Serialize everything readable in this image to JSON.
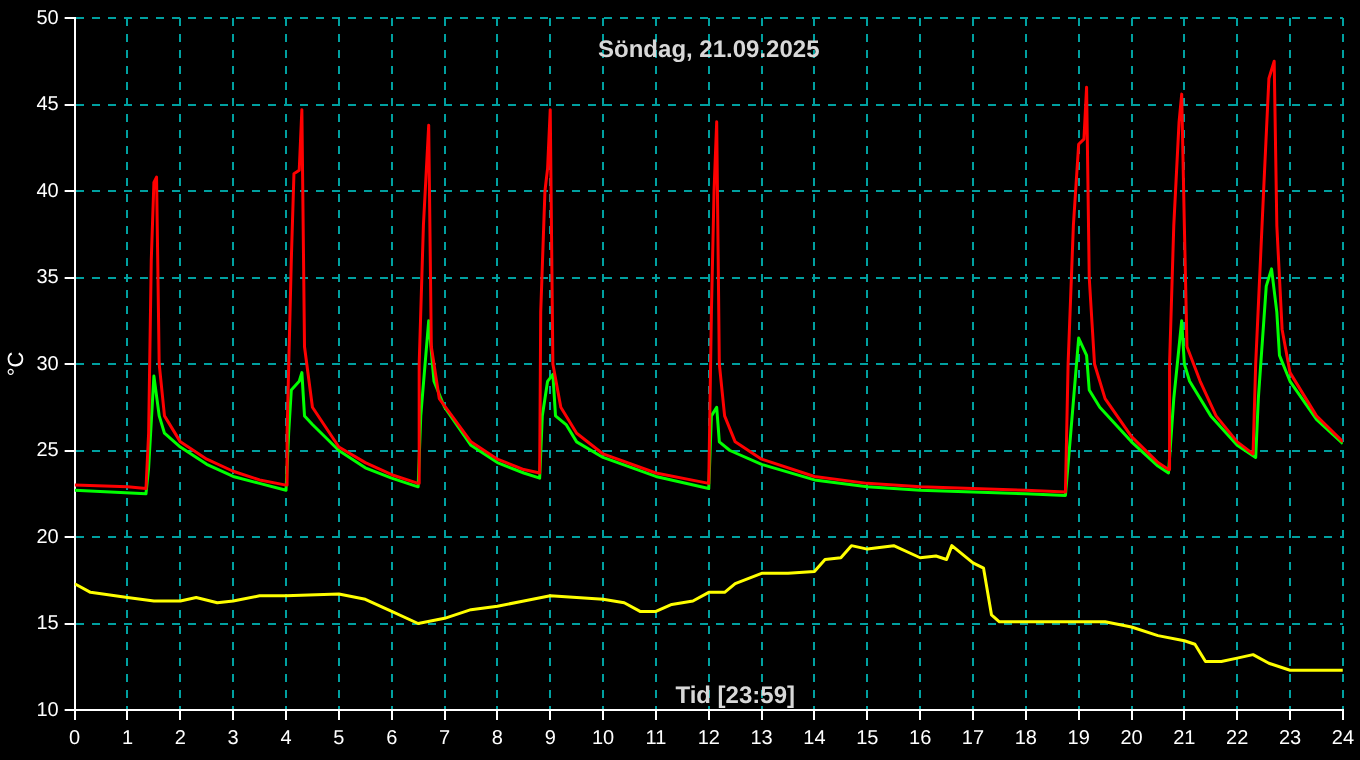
{
  "chart_data": {
    "type": "line",
    "title": "Söndag, 21.09.2025",
    "xlabel": "Tid [23:59]",
    "ylabel": "°C",
    "xlim": [
      0,
      24
    ],
    "xticks": [
      0,
      1,
      2,
      3,
      4,
      5,
      6,
      7,
      8,
      9,
      10,
      11,
      12,
      13,
      14,
      15,
      16,
      17,
      18,
      19,
      20,
      21,
      22,
      23,
      24
    ],
    "ylim": [
      10,
      50
    ],
    "yticks": [
      10,
      15,
      20,
      25,
      30,
      35,
      40,
      45,
      50
    ],
    "grid": true,
    "legend": false,
    "marker": "none",
    "line_style": "solid",
    "series": [
      {
        "color": "#ff0000",
        "x": [
          0,
          1,
          1.35,
          1.4,
          1.45,
          1.5,
          1.55,
          1.6,
          1.7,
          2,
          2.5,
          3,
          3.5,
          4,
          4.02,
          4.1,
          4.15,
          4.25,
          4.3,
          4.35,
          4.5,
          5,
          5.5,
          6,
          6.5,
          6.52,
          6.6,
          6.7,
          6.75,
          6.9,
          7.5,
          8,
          8.5,
          8.8,
          8.82,
          8.9,
          8.95,
          9,
          9.05,
          9.2,
          9.5,
          10,
          11,
          12,
          12.05,
          12.1,
          12.15,
          12.2,
          12.3,
          12.5,
          13,
          14,
          15,
          16,
          17,
          18,
          18.75,
          18.8,
          18.9,
          19,
          19.1,
          19.15,
          19.2,
          19.3,
          19.5,
          20,
          20.5,
          20.7,
          20.72,
          20.8,
          20.9,
          20.95,
          21,
          21.05,
          21.3,
          21.6,
          22,
          22.3,
          22.35,
          22.5,
          22.6,
          22.7,
          22.75,
          22.85,
          23,
          23.5,
          24
        ],
        "values": [
          23,
          22.9,
          22.8,
          26,
          36,
          40.5,
          40.8,
          30,
          27,
          25.5,
          24.5,
          23.8,
          23.3,
          23,
          26,
          36,
          41,
          41.2,
          44.7,
          31,
          27.5,
          25.2,
          24.3,
          23.6,
          23.1,
          30,
          38,
          43.8,
          31,
          28,
          25.5,
          24.5,
          23.9,
          23.7,
          33,
          40,
          41.3,
          44.7,
          30,
          27.5,
          26,
          24.8,
          23.7,
          23.1,
          33,
          40,
          44,
          30,
          27,
          25.5,
          24.5,
          23.5,
          23.1,
          22.9,
          22.8,
          22.7,
          22.6,
          30,
          38,
          42.7,
          43,
          46,
          35,
          30,
          28,
          25.8,
          24.3,
          23.9,
          30,
          38,
          44,
          45.6,
          38,
          31,
          29,
          27,
          25.5,
          24.8,
          30,
          40,
          46.5,
          47.5,
          38,
          32,
          29.5,
          27,
          25.5
        ]
      },
      {
        "color": "#00ff00",
        "x": [
          0,
          1.35,
          1.4,
          1.5,
          1.6,
          1.7,
          2,
          2.5,
          3,
          3.5,
          4,
          4.05,
          4.1,
          4.25,
          4.3,
          4.35,
          4.5,
          5,
          5.5,
          6,
          6.5,
          6.55,
          6.7,
          6.8,
          7,
          7.5,
          8,
          8.5,
          8.8,
          8.85,
          8.95,
          9.05,
          9.1,
          9.3,
          9.5,
          10,
          11,
          12,
          12.05,
          12.15,
          12.2,
          12.4,
          13,
          14,
          15,
          16,
          17,
          18,
          18.75,
          18.85,
          19,
          19.15,
          19.2,
          19.4,
          20,
          20.5,
          20.7,
          20.8,
          20.95,
          21,
          21.1,
          21.5,
          22,
          22.35,
          22.4,
          22.55,
          22.65,
          22.75,
          22.8,
          23,
          23.5,
          24
        ],
        "values": [
          22.7,
          22.5,
          24,
          29.3,
          27,
          26,
          25.2,
          24.2,
          23.5,
          23.1,
          22.7,
          26,
          28.5,
          29,
          29.5,
          27,
          26.5,
          25,
          24,
          23.4,
          22.9,
          27,
          32.5,
          29,
          27.5,
          25.3,
          24.3,
          23.7,
          23.4,
          27,
          29,
          29.4,
          27,
          26.5,
          25.5,
          24.6,
          23.5,
          22.8,
          27,
          27.5,
          25.5,
          25,
          24.2,
          23.3,
          22.9,
          22.7,
          22.6,
          22.5,
          22.4,
          26,
          31.5,
          30.5,
          28.5,
          27.5,
          25.5,
          24.1,
          23.7,
          28,
          32.5,
          30,
          29,
          27,
          25.3,
          24.6,
          28,
          34.5,
          35.5,
          33,
          30.5,
          29,
          26.8,
          25.4
        ]
      },
      {
        "color": "#ffff00",
        "x": [
          0,
          0.3,
          1,
          1.5,
          2,
          2.3,
          2.7,
          3,
          3.5,
          4,
          5,
          5.5,
          6,
          6.5,
          7,
          7.5,
          8,
          8.5,
          9,
          9.5,
          10,
          10.4,
          10.7,
          11,
          11.3,
          11.7,
          12,
          12.3,
          12.5,
          13,
          13.5,
          14,
          14.2,
          14.5,
          14.7,
          15,
          15.5,
          16,
          16.3,
          16.5,
          16.6,
          17,
          17.2,
          17.35,
          17.5,
          18,
          19,
          19.5,
          20,
          20.5,
          21,
          21.2,
          21.4,
          21.7,
          22,
          22.3,
          22.6,
          23,
          24
        ],
        "values": [
          17.3,
          16.8,
          16.5,
          16.3,
          16.3,
          16.5,
          16.2,
          16.3,
          16.6,
          16.6,
          16.7,
          16.4,
          15.7,
          15,
          15.3,
          15.8,
          16,
          16.3,
          16.6,
          16.5,
          16.4,
          16.2,
          15.7,
          15.7,
          16.1,
          16.3,
          16.8,
          16.8,
          17.3,
          17.9,
          17.9,
          18,
          18.7,
          18.8,
          19.5,
          19.3,
          19.5,
          18.8,
          18.9,
          18.7,
          19.5,
          18.5,
          18.2,
          15.5,
          15.1,
          15.1,
          15.1,
          15.1,
          14.8,
          14.3,
          14,
          13.8,
          12.8,
          12.8,
          13,
          13.2,
          12.7,
          12.3,
          12.3
        ]
      }
    ]
  }
}
